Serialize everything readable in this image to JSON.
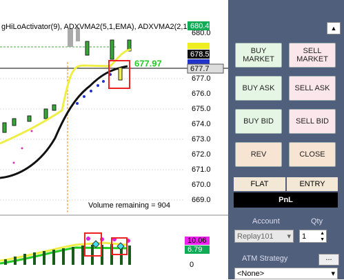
{
  "chart": {
    "title": "gHiLoActivator(9), ADXVMA2(5,1,EMA), ADXVMA2(2,1,",
    "price_ticks": [
      "680.0",
      "677.0",
      "676.0",
      "675.0",
      "674.0",
      "673.0",
      "672.0",
      "671.0",
      "670.0",
      "669.0"
    ],
    "price_labels": [
      "680.4",
      "678.5",
      "677.7"
    ],
    "last_price": "677.97",
    "volume_remaining": "Volume remaining = 904",
    "indicator_labels": [
      "10.06",
      "6.79"
    ],
    "indicator_tick": "0"
  },
  "panel": {
    "buttons": [
      "BUY MARKET",
      "SELL MARKET",
      "BUY ASK",
      "SELL ASK",
      "BUY BID",
      "SELL BID",
      "REV",
      "CLOSE"
    ],
    "flat": "FLAT",
    "entry": "ENTRY",
    "pnl": "PnL",
    "account_label": "Account",
    "qty_label": "Qty",
    "account": "Replay101",
    "qty": "1",
    "atm_label": "ATM Strategy",
    "atm_button": "...",
    "atm": "<None>"
  }
}
